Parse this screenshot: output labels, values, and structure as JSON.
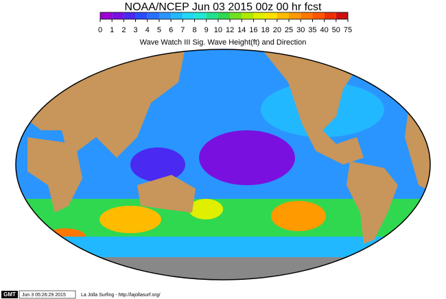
{
  "header": {
    "title": "NOAA/NCEP Jun 03 2015 00z 00 hr fcst",
    "subtitle": "Wave Watch III Sig. Wave Height(ft) and Direction"
  },
  "colorbar": {
    "labels": [
      "0",
      "1",
      "2",
      "3",
      "4",
      "5",
      "6",
      "7",
      "8",
      "9",
      "10",
      "12",
      "14",
      "16",
      "18",
      "20",
      "25",
      "30",
      "35",
      "40",
      "50",
      "75"
    ],
    "colors": [
      "#9a00d0",
      "#7a10e0",
      "#4a2af0",
      "#2a4cff",
      "#2a70ff",
      "#2a95ff",
      "#22b8ff",
      "#22d8f5",
      "#22e8d0",
      "#22e090",
      "#30d850",
      "#70e020",
      "#b0e800",
      "#e0ee00",
      "#ffe000",
      "#ffbb00",
      "#ff9a00",
      "#ff7700",
      "#ff5500",
      "#ee3000",
      "#cc1010"
    ]
  },
  "footer": {
    "badge": "GMT",
    "stamp": "Jun 3 05:26:29 2015",
    "credit": "La Jolla Surfing - http://lajollasurf.org/"
  }
}
